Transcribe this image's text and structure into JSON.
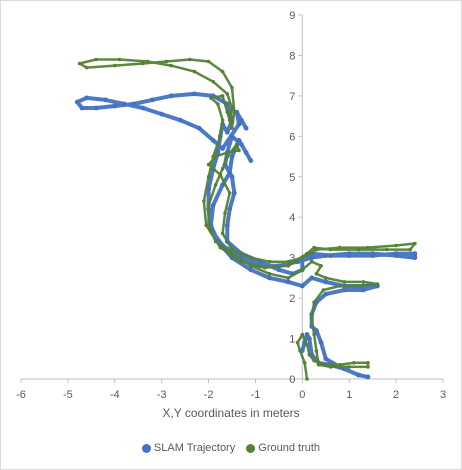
{
  "chart_data": {
    "type": "scatter",
    "title": "",
    "xlabel": "X,Y coordinates in meters",
    "ylabel": "",
    "xlim": [
      -6,
      3
    ],
    "ylim": [
      0,
      9
    ],
    "xticks": [
      "-6",
      "-5",
      "-4",
      "-3",
      "-2",
      "-1",
      "0",
      "1",
      "2",
      "3"
    ],
    "yticks": [
      "0",
      "1",
      "2",
      "3",
      "4",
      "5",
      "6",
      "7",
      "8",
      "9"
    ],
    "grid": false,
    "legend_position": "bottom",
    "series": [
      {
        "name": "SLAM Trajectory",
        "color": "#4472C4",
        "points": [
          [
            0.0,
            0.7
          ],
          [
            0.05,
            0.9
          ],
          [
            0.1,
            1.1
          ],
          [
            0.15,
            1.0
          ],
          [
            0.2,
            0.6
          ],
          [
            0.35,
            0.4
          ],
          [
            0.6,
            0.35
          ],
          [
            0.9,
            0.25
          ],
          [
            1.2,
            0.1
          ],
          [
            1.4,
            0.05
          ],
          [
            1.2,
            0.1
          ],
          [
            0.8,
            0.3
          ],
          [
            0.5,
            0.5
          ],
          [
            0.4,
            0.9
          ],
          [
            0.3,
            1.2
          ],
          [
            0.2,
            1.3
          ],
          [
            0.2,
            1.6
          ],
          [
            0.3,
            1.9
          ],
          [
            0.5,
            2.1
          ],
          [
            0.9,
            2.2
          ],
          [
            1.3,
            2.2
          ],
          [
            1.6,
            2.3
          ],
          [
            1.3,
            2.3
          ],
          [
            0.9,
            2.3
          ],
          [
            0.5,
            2.4
          ],
          [
            0.2,
            2.5
          ],
          [
            0.0,
            2.3
          ],
          [
            -0.3,
            2.4
          ],
          [
            -0.7,
            2.5
          ],
          [
            -1.1,
            2.7
          ],
          [
            -1.5,
            3.0
          ],
          [
            -1.8,
            3.4
          ],
          [
            -1.95,
            3.8
          ],
          [
            -1.9,
            4.3
          ],
          [
            -1.7,
            4.8
          ],
          [
            -1.55,
            5.1
          ],
          [
            -1.5,
            5.5
          ],
          [
            -1.35,
            5.9
          ],
          [
            -1.2,
            5.6
          ],
          [
            -1.1,
            5.4
          ],
          [
            -1.3,
            5.8
          ],
          [
            -1.5,
            6.0
          ],
          [
            -1.6,
            5.6
          ],
          [
            -1.65,
            5.3
          ],
          [
            -1.5,
            5.0
          ],
          [
            -1.45,
            4.6
          ],
          [
            -1.55,
            4.2
          ],
          [
            -1.6,
            3.8
          ],
          [
            -1.6,
            3.4
          ],
          [
            -1.3,
            3.1
          ],
          [
            -0.9,
            2.9
          ],
          [
            -0.5,
            2.7
          ],
          [
            -0.2,
            2.6
          ],
          [
            0.0,
            2.7
          ],
          [
            0.0,
            3.0
          ],
          [
            0.2,
            3.1
          ],
          [
            0.6,
            3.05
          ],
          [
            1.0,
            3.05
          ],
          [
            1.5,
            3.05
          ],
          [
            2.0,
            3.1
          ],
          [
            2.4,
            3.1
          ],
          [
            2.4,
            3.0
          ],
          [
            2.0,
            3.05
          ],
          [
            1.5,
            3.1
          ],
          [
            1.0,
            3.1
          ],
          [
            0.5,
            3.05
          ],
          [
            0.2,
            3.0
          ],
          [
            -0.1,
            2.9
          ],
          [
            -0.5,
            2.8
          ],
          [
            -0.9,
            2.8
          ],
          [
            -1.3,
            3.0
          ],
          [
            -1.7,
            3.3
          ],
          [
            -1.95,
            3.7
          ],
          [
            -2.0,
            4.2
          ],
          [
            -2.0,
            4.7
          ],
          [
            -1.9,
            5.2
          ],
          [
            -1.8,
            5.6
          ],
          [
            -1.75,
            6.0
          ],
          [
            -1.7,
            6.3
          ],
          [
            -1.6,
            6.1
          ],
          [
            -1.5,
            6.4
          ],
          [
            -1.6,
            6.8
          ],
          [
            -1.9,
            7.0
          ],
          [
            -2.3,
            7.05
          ],
          [
            -2.8,
            7.0
          ],
          [
            -3.2,
            6.9
          ],
          [
            -3.6,
            6.8
          ],
          [
            -4.0,
            6.75
          ],
          [
            -4.4,
            6.7
          ],
          [
            -4.7,
            6.7
          ],
          [
            -4.8,
            6.85
          ],
          [
            -4.6,
            6.95
          ],
          [
            -4.2,
            6.9
          ],
          [
            -3.8,
            6.8
          ],
          [
            -3.4,
            6.7
          ],
          [
            -3.0,
            6.55
          ],
          [
            -2.6,
            6.4
          ],
          [
            -2.2,
            6.2
          ],
          [
            -1.9,
            5.9
          ],
          [
            -1.7,
            5.7
          ],
          [
            -1.35,
            6.3
          ],
          [
            -1.4,
            6.6
          ],
          [
            -1.3,
            6.4
          ],
          [
            -1.2,
            6.2
          ]
        ]
      },
      {
        "name": "Ground truth",
        "color": "#548235",
        "points": [
          [
            0.1,
            0.0
          ],
          [
            0.05,
            0.4
          ],
          [
            -0.05,
            0.7
          ],
          [
            -0.1,
            0.9
          ],
          [
            0.0,
            1.1
          ],
          [
            0.1,
            0.85
          ],
          [
            0.15,
            0.6
          ],
          [
            0.25,
            0.45
          ],
          [
            0.5,
            0.35
          ],
          [
            0.8,
            0.35
          ],
          [
            1.1,
            0.4
          ],
          [
            1.4,
            0.4
          ],
          [
            1.4,
            0.3
          ],
          [
            1.0,
            0.3
          ],
          [
            0.6,
            0.3
          ],
          [
            0.35,
            0.35
          ],
          [
            0.3,
            0.7
          ],
          [
            0.25,
            1.1
          ],
          [
            0.2,
            1.5
          ],
          [
            0.25,
            1.9
          ],
          [
            0.45,
            2.2
          ],
          [
            0.8,
            2.3
          ],
          [
            1.2,
            2.3
          ],
          [
            1.6,
            2.35
          ],
          [
            1.3,
            2.4
          ],
          [
            0.9,
            2.4
          ],
          [
            0.5,
            2.5
          ],
          [
            0.3,
            2.6
          ],
          [
            0.4,
            2.8
          ],
          [
            0.2,
            2.9
          ],
          [
            0.0,
            2.7
          ],
          [
            -0.3,
            2.5
          ],
          [
            -0.7,
            2.6
          ],
          [
            -1.1,
            2.8
          ],
          [
            -1.5,
            3.1
          ],
          [
            -1.85,
            3.4
          ],
          [
            -2.0,
            3.8
          ],
          [
            -2.0,
            4.3
          ],
          [
            -1.85,
            4.8
          ],
          [
            -1.7,
            5.2
          ],
          [
            -1.6,
            5.5
          ],
          [
            -1.4,
            5.8
          ],
          [
            -1.35,
            5.65
          ],
          [
            -1.6,
            5.6
          ],
          [
            -1.85,
            5.5
          ],
          [
            -2.0,
            5.3
          ],
          [
            -1.75,
            5.05
          ],
          [
            -1.55,
            4.6
          ],
          [
            -1.65,
            4.1
          ],
          [
            -1.7,
            3.6
          ],
          [
            -1.5,
            3.2
          ],
          [
            -1.1,
            3.0
          ],
          [
            -0.7,
            2.9
          ],
          [
            -0.3,
            2.9
          ],
          [
            0.0,
            3.0
          ],
          [
            0.3,
            3.2
          ],
          [
            0.8,
            3.25
          ],
          [
            1.4,
            3.25
          ],
          [
            2.0,
            3.3
          ],
          [
            2.4,
            3.35
          ],
          [
            2.3,
            3.2
          ],
          [
            1.8,
            3.2
          ],
          [
            1.2,
            3.2
          ],
          [
            0.6,
            3.2
          ],
          [
            0.25,
            3.25
          ],
          [
            0.1,
            3.1
          ],
          [
            -0.3,
            2.8
          ],
          [
            -0.8,
            2.75
          ],
          [
            -1.3,
            2.9
          ],
          [
            -1.75,
            3.25
          ],
          [
            -2.05,
            3.8
          ],
          [
            -2.1,
            4.4
          ],
          [
            -2.0,
            5.0
          ],
          [
            -1.9,
            5.5
          ],
          [
            -1.75,
            6.0
          ],
          [
            -1.7,
            6.4
          ],
          [
            -1.8,
            6.8
          ],
          [
            -1.95,
            6.95
          ],
          [
            -1.7,
            7.0
          ],
          [
            -1.6,
            6.6
          ],
          [
            -1.5,
            6.2
          ],
          [
            -1.45,
            6.6
          ],
          [
            -1.5,
            7.2
          ],
          [
            -1.7,
            7.6
          ],
          [
            -2.0,
            7.85
          ],
          [
            -2.4,
            7.9
          ],
          [
            -2.9,
            7.85
          ],
          [
            -3.4,
            7.8
          ],
          [
            -4.0,
            7.75
          ],
          [
            -4.6,
            7.7
          ],
          [
            -4.75,
            7.8
          ],
          [
            -4.4,
            7.9
          ],
          [
            -3.9,
            7.9
          ],
          [
            -3.3,
            7.85
          ],
          [
            -2.8,
            7.75
          ],
          [
            -2.3,
            7.6
          ],
          [
            -1.9,
            7.35
          ],
          [
            -1.6,
            7.05
          ],
          [
            -1.5,
            6.7
          ],
          [
            -1.55,
            6.4
          ]
        ]
      }
    ]
  }
}
